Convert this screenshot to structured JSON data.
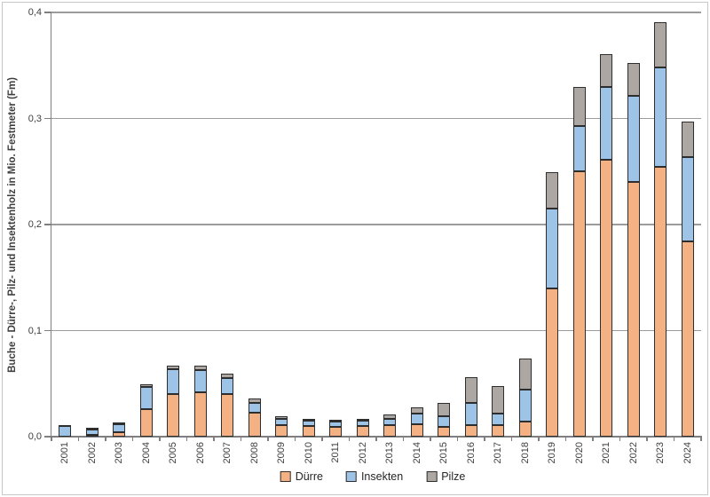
{
  "chart_data": {
    "type": "bar",
    "stacked": true,
    "ylabel": "Buche - Dürre-, Pilz- und Insektenholz in Mio. Festmeter (Fm)",
    "xlabel": "",
    "ylim": [
      0,
      0.4
    ],
    "ytick_step": 0.1,
    "yticks": [
      0,
      0.1,
      0.2,
      0.3,
      0.4
    ],
    "ytick_labels": [
      "0,0",
      "0,1",
      "0,2",
      "0,3",
      "0,4"
    ],
    "grid": true,
    "legend_position": "bottom-center",
    "categories": [
      "2001",
      "2002",
      "2003",
      "2004",
      "2005",
      "2006",
      "2007",
      "2008",
      "2009",
      "2010",
      "2011",
      "2012",
      "2013",
      "2014",
      "2015",
      "2016",
      "2017",
      "2018",
      "2019",
      "2020",
      "2021",
      "2022",
      "2023",
      "2024"
    ],
    "series": [
      {
        "name": "Dürre",
        "color": "#F4B183",
        "values": [
          0.0,
          0.002,
          0.004,
          0.026,
          0.04,
          0.042,
          0.04,
          0.023,
          0.011,
          0.01,
          0.009,
          0.01,
          0.011,
          0.012,
          0.009,
          0.011,
          0.011,
          0.014,
          0.14,
          0.25,
          0.261,
          0.24,
          0.254,
          0.184
        ]
      },
      {
        "name": "Insekten",
        "color": "#9DC3E6",
        "values": [
          0.01,
          0.005,
          0.008,
          0.021,
          0.024,
          0.021,
          0.015,
          0.009,
          0.006,
          0.005,
          0.005,
          0.005,
          0.006,
          0.01,
          0.01,
          0.021,
          0.011,
          0.03,
          0.075,
          0.043,
          0.069,
          0.081,
          0.094,
          0.08
        ]
      },
      {
        "name": "Pilze",
        "color": "#ACA7A2",
        "values": [
          0.001,
          0.001,
          0.001,
          0.002,
          0.003,
          0.004,
          0.004,
          0.004,
          0.002,
          0.002,
          0.002,
          0.002,
          0.004,
          0.006,
          0.013,
          0.024,
          0.026,
          0.03,
          0.034,
          0.037,
          0.031,
          0.031,
          0.043,
          0.033
        ]
      }
    ],
    "colors": {
      "bar_outline": "#2E2E2E",
      "axis": "#7F7F7F",
      "gridline": "#9C9C9C",
      "tick_text": "#3F3F3F",
      "legend_text": "#262626",
      "figure_border": "#C6C6C6",
      "background": "#FFFFFF"
    }
  }
}
